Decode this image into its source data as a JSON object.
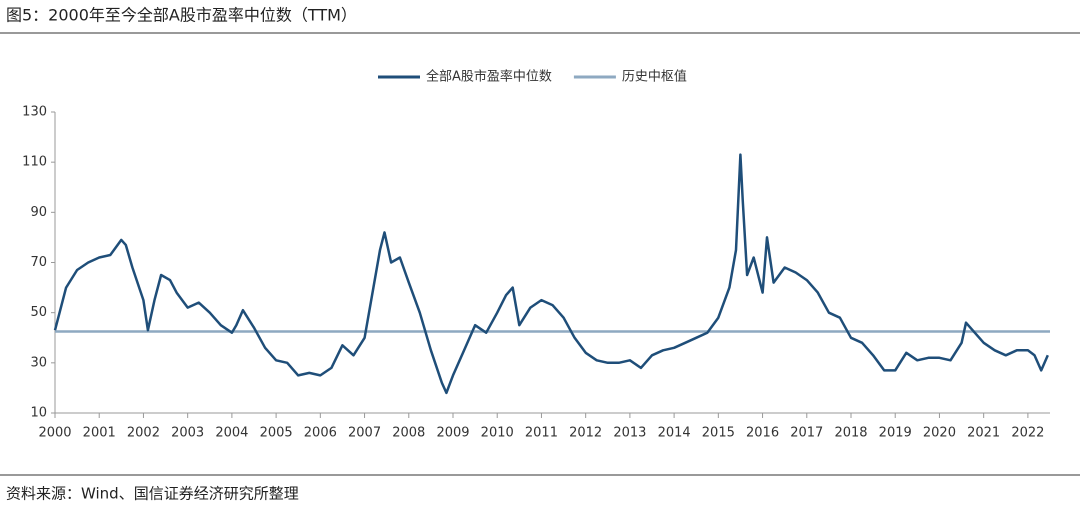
{
  "chart_data": {
    "type": "line",
    "title": "图5：2000年至今全部A股市盈率中位数（TTM）",
    "source": "资料来源：Wind、国信证券经济研究所整理",
    "x": [
      2000.0,
      2000.25,
      2000.5,
      2000.75,
      2001.0,
      2001.25,
      2001.5,
      2001.6,
      2001.75,
      2002.0,
      2002.1,
      2002.25,
      2002.4,
      2002.6,
      2002.75,
      2003.0,
      2003.25,
      2003.5,
      2003.75,
      2004.0,
      2004.1,
      2004.25,
      2004.5,
      2004.75,
      2005.0,
      2005.25,
      2005.5,
      2005.75,
      2006.0,
      2006.25,
      2006.5,
      2006.75,
      2007.0,
      2007.2,
      2007.35,
      2007.45,
      2007.6,
      2007.8,
      2008.0,
      2008.25,
      2008.5,
      2008.75,
      2008.85,
      2009.0,
      2009.25,
      2009.5,
      2009.75,
      2010.0,
      2010.2,
      2010.35,
      2010.5,
      2010.75,
      2011.0,
      2011.25,
      2011.5,
      2011.75,
      2012.0,
      2012.25,
      2012.5,
      2012.75,
      2013.0,
      2013.25,
      2013.5,
      2013.75,
      2014.0,
      2014.25,
      2014.5,
      2014.75,
      2015.0,
      2015.25,
      2015.4,
      2015.5,
      2015.55,
      2015.65,
      2015.8,
      2016.0,
      2016.1,
      2016.25,
      2016.5,
      2016.75,
      2017.0,
      2017.25,
      2017.5,
      2017.75,
      2018.0,
      2018.25,
      2018.5,
      2018.75,
      2019.0,
      2019.25,
      2019.5,
      2019.75,
      2020.0,
      2020.25,
      2020.5,
      2020.6,
      2020.75,
      2021.0,
      2021.25,
      2021.5,
      2021.75,
      2022.0,
      2022.15,
      2022.3,
      2022.45
    ],
    "series": [
      {
        "name": "全部A股市盈率中位数",
        "color": "#1f4e79",
        "values": [
          43,
          60,
          67,
          70,
          72,
          73,
          79,
          77,
          68,
          55,
          43,
          55,
          65,
          63,
          58,
          52,
          54,
          50,
          45,
          42,
          45,
          51,
          44,
          36,
          31,
          30,
          25,
          26,
          25,
          28,
          37,
          33,
          40,
          60,
          75,
          82,
          70,
          72,
          62,
          50,
          35,
          22,
          18,
          25,
          35,
          45,
          42,
          50,
          57,
          60,
          45,
          52,
          55,
          53,
          48,
          40,
          34,
          31,
          30,
          30,
          31,
          28,
          33,
          35,
          36,
          38,
          40,
          42,
          48,
          60,
          75,
          113,
          95,
          65,
          72,
          58,
          80,
          62,
          68,
          66,
          63,
          58,
          50,
          48,
          40,
          38,
          33,
          27,
          27,
          34,
          31,
          32,
          32,
          31,
          38,
          46,
          43,
          38,
          35,
          33,
          35,
          35,
          33,
          27,
          33
        ]
      }
    ],
    "reference_lines": [
      {
        "name": "历史中枢值",
        "color": "#8ea9c1",
        "value": 42.5
      }
    ],
    "xlim": [
      2000,
      2022.5
    ],
    "xticks": [
      2000,
      2001,
      2002,
      2003,
      2004,
      2005,
      2006,
      2007,
      2008,
      2009,
      2010,
      2011,
      2012,
      2013,
      2014,
      2015,
      2016,
      2017,
      2018,
      2019,
      2020,
      2021,
      2022
    ],
    "ylim": [
      10,
      130
    ],
    "yticks": [
      10,
      30,
      50,
      70,
      90,
      110,
      130
    ],
    "grid": false
  }
}
